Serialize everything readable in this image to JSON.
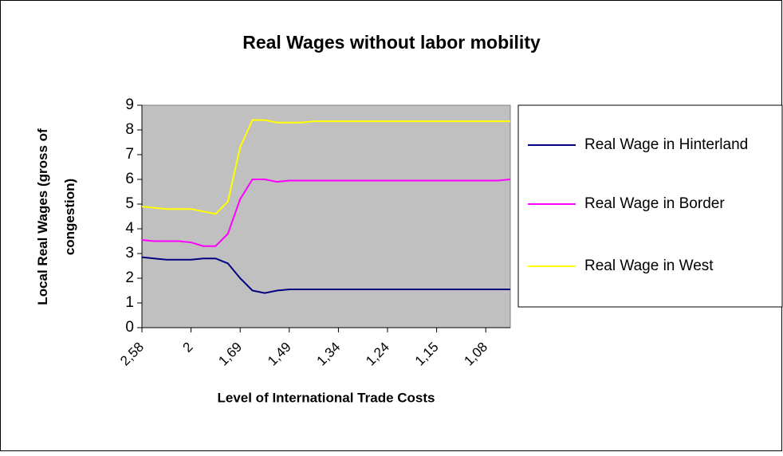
{
  "chart_data": {
    "type": "line",
    "title": "Real Wages without labor mobility",
    "x_label": "Level of International Trade Costs",
    "y_label": "Local Real Wages (gross of congestion)",
    "categories": [
      "2,58",
      null,
      null,
      null,
      "2",
      null,
      null,
      null,
      "1,69",
      null,
      null,
      null,
      "1,49",
      null,
      null,
      null,
      "1,34",
      null,
      null,
      null,
      "1,24",
      null,
      null,
      null,
      "1,15",
      null,
      null,
      null,
      "1,08",
      null,
      null
    ],
    "series": [
      {
        "name": "Real Wage in Hinterland",
        "color": "#000080",
        "values": [
          2.85,
          2.8,
          2.75,
          2.75,
          2.75,
          2.8,
          2.8,
          2.6,
          2.0,
          1.5,
          1.4,
          1.5,
          1.55,
          1.55,
          1.55,
          1.55,
          1.55,
          1.55,
          1.55,
          1.55,
          1.55,
          1.55,
          1.55,
          1.55,
          1.55,
          1.55,
          1.55,
          1.55,
          1.55,
          1.55,
          1.55
        ]
      },
      {
        "name": "Real Wage in Border",
        "color": "#ff00ff",
        "values": [
          3.55,
          3.5,
          3.5,
          3.5,
          3.45,
          3.3,
          3.3,
          3.8,
          5.2,
          6.0,
          6.0,
          5.9,
          5.95,
          5.95,
          5.95,
          5.95,
          5.95,
          5.95,
          5.95,
          5.95,
          5.95,
          5.95,
          5.95,
          5.95,
          5.95,
          5.95,
          5.95,
          5.95,
          5.95,
          5.95,
          6.0
        ]
      },
      {
        "name": "Real Wage in West",
        "color": "#ffff00",
        "values": [
          4.9,
          4.85,
          4.8,
          4.8,
          4.8,
          4.7,
          4.6,
          5.1,
          7.3,
          8.4,
          8.4,
          8.3,
          8.3,
          8.3,
          8.35,
          8.35,
          8.35,
          8.35,
          8.35,
          8.35,
          8.35,
          8.35,
          8.35,
          8.35,
          8.35,
          8.35,
          8.35,
          8.35,
          8.35,
          8.35,
          8.35
        ]
      }
    ],
    "ylim": [
      0,
      9
    ],
    "yticks": [
      0,
      1,
      2,
      3,
      4,
      5,
      6,
      7,
      8,
      9
    ],
    "grid": false,
    "legend": "right",
    "plot_background": "#c0c0c0"
  }
}
